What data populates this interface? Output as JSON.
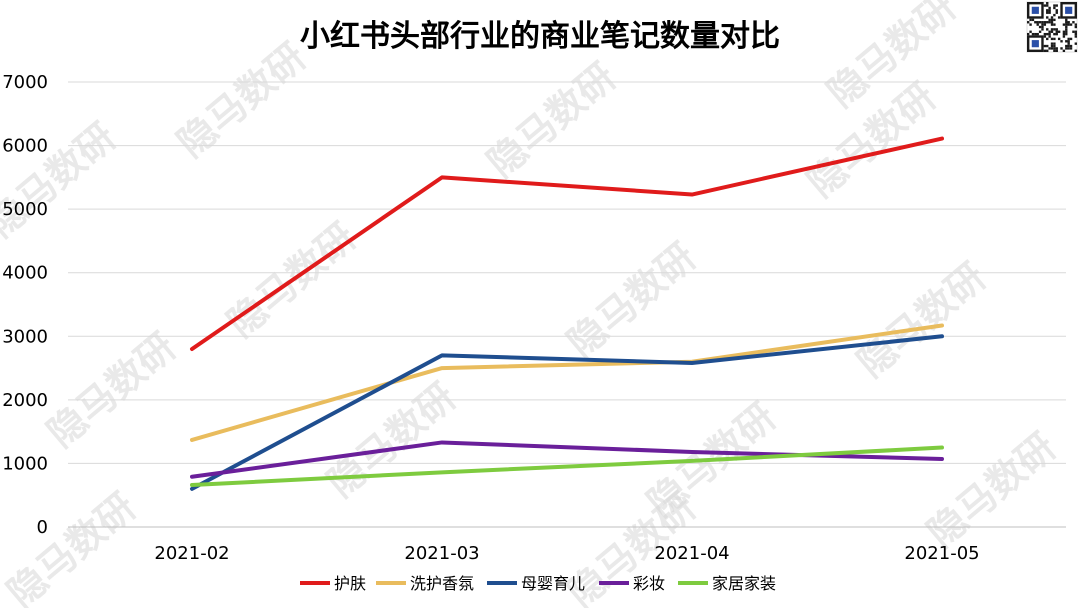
{
  "chart_data": {
    "type": "line",
    "title": "小红书头部行业的商业笔记数量对比",
    "categories": [
      "2021-02",
      "2021-03",
      "2021-04",
      "2021-05"
    ],
    "ylim": [
      0,
      7000
    ],
    "yticks": [
      0,
      1000,
      2000,
      3000,
      4000,
      5000,
      6000,
      7000
    ],
    "grid": true,
    "legend_position": "bottom",
    "series": [
      {
        "name": "护肤",
        "color": "#e01b1b",
        "values": [
          2800,
          5500,
          5230,
          6110
        ]
      },
      {
        "name": "洗护香氛",
        "color": "#e9bc5d",
        "values": [
          1370,
          2500,
          2600,
          3170
        ]
      },
      {
        "name": "母婴育儿",
        "color": "#1f4e8f",
        "values": [
          600,
          2700,
          2580,
          3000
        ]
      },
      {
        "name": "彩妆",
        "color": "#6a1f9a",
        "values": [
          790,
          1330,
          1180,
          1070
        ]
      },
      {
        "name": "家居家装",
        "color": "#7ecb3f",
        "values": [
          660,
          860,
          1040,
          1250
        ]
      }
    ]
  },
  "watermark": {
    "text": "隐马数研"
  },
  "qr_icon": "qr-code-icon"
}
